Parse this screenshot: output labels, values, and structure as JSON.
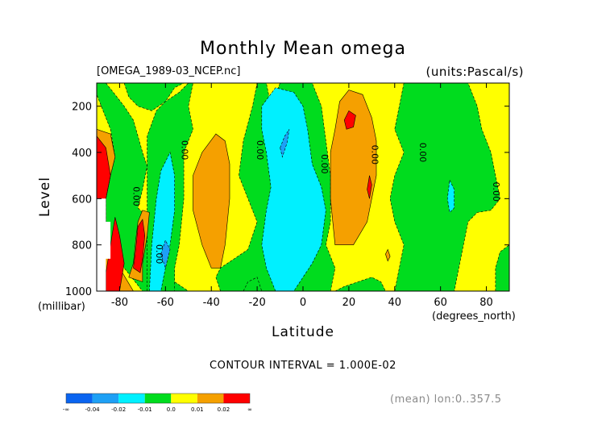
{
  "chart_data": {
    "type": "contour",
    "title": "Monthly Mean omega",
    "file_label": "[OMEGA_1989-03_NCEP.nc]",
    "units_label": "(units:Pascal/s)",
    "xlabel": "Latitude",
    "x_unit": "(degrees_north)",
    "ylabel": "Level",
    "y_unit": "(millibar)",
    "contour_note": "CONTOUR INTERVAL = 1.000E-02",
    "mean_note": "(mean) lon:0..357.5",
    "xlim": [
      -90,
      90
    ],
    "ylim": [
      1000,
      100
    ],
    "x_ticks": [
      -80,
      -60,
      -40,
      -20,
      0,
      20,
      40,
      60,
      80
    ],
    "y_ticks": [
      200,
      400,
      600,
      800,
      1000
    ],
    "x_tick_labels": [
      "-80",
      "-60",
      "-40",
      "-20",
      "0",
      "20",
      "40",
      "60",
      "80"
    ],
    "y_tick_labels": [
      "200",
      "400",
      "600",
      "800",
      "1000"
    ],
    "levels": [
      -0.04,
      -0.02,
      -0.01,
      0.0,
      0.01,
      0.02
    ],
    "colorbar": {
      "colors": [
        "#0a64f0",
        "#1ea0f5",
        "#00f0ff",
        "#00dc1e",
        "#ffff00",
        "#f5a000",
        "#ff0000"
      ],
      "labels": [
        "-∞",
        "-0.04",
        "-0.02",
        "-0.01",
        "0.0",
        "0.01",
        "0.02",
        "∞"
      ]
    },
    "zero_contour_labels": [
      {
        "x": -53,
        "y": 390,
        "text": "0.00"
      },
      {
        "x": -20,
        "y": 390,
        "text": "0.00"
      },
      {
        "x": 8,
        "y": 450,
        "text": "0.00"
      },
      {
        "x": 30,
        "y": 410,
        "text": "0.00"
      },
      {
        "x": 51,
        "y": 400,
        "text": "0.00"
      },
      {
        "x": 83,
        "y": 570,
        "text": "0.00"
      },
      {
        "x": -74,
        "y": 590,
        "text": "0.00"
      },
      {
        "x": -64,
        "y": 840,
        "text": "0.00"
      }
    ],
    "regions": [
      {
        "value": 0.005,
        "pts": [
          [
            -90,
            1000
          ],
          [
            -90,
            100
          ],
          [
            90,
            100
          ],
          [
            90,
            1000
          ]
        ]
      },
      {
        "value": -0.005,
        "pts": [
          [
            -86,
            100
          ],
          [
            -82,
            150
          ],
          [
            -78,
            200
          ],
          [
            -74,
            260
          ],
          [
            -72,
            330
          ],
          [
            -70,
            400
          ],
          [
            -68,
            460
          ],
          [
            -70,
            560
          ],
          [
            -72,
            640
          ],
          [
            -66,
            700
          ],
          [
            -63,
            800
          ],
          [
            -58,
            880
          ],
          [
            -56,
            960
          ],
          [
            -50,
            1000
          ],
          [
            -70,
            1000
          ],
          [
            -78,
            900
          ],
          [
            -84,
            800
          ],
          [
            -86,
            700
          ],
          [
            -86,
            600
          ],
          [
            -84,
            500
          ],
          [
            -82,
            420
          ],
          [
            -84,
            300
          ],
          [
            -88,
            200
          ],
          [
            -90,
            150
          ],
          [
            -90,
            100
          ]
        ]
      },
      {
        "value": -0.005,
        "pts": [
          [
            -78,
            100
          ],
          [
            -76,
            160
          ],
          [
            -72,
            200
          ],
          [
            -66,
            220
          ],
          [
            -60,
            180
          ],
          [
            -56,
            120
          ],
          [
            -52,
            100
          ]
        ]
      },
      {
        "value": -0.005,
        "pts": [
          [
            -68,
            1000
          ],
          [
            -68,
            330
          ],
          [
            -64,
            220
          ],
          [
            -60,
            180
          ],
          [
            -54,
            140
          ],
          [
            -50,
            100
          ],
          [
            -48,
            100
          ],
          [
            -50,
            200
          ],
          [
            -48,
            300
          ],
          [
            -52,
            400
          ],
          [
            -52,
            600
          ],
          [
            -54,
            800
          ],
          [
            -56,
            900
          ],
          [
            -56,
            1000
          ]
        ]
      },
      {
        "value": -0.005,
        "pts": [
          [
            -36,
            1000
          ],
          [
            -38,
            940
          ],
          [
            -36,
            900
          ],
          [
            -30,
            860
          ],
          [
            -24,
            820
          ],
          [
            -20,
            700
          ],
          [
            -24,
            600
          ],
          [
            -28,
            500
          ],
          [
            -26,
            350
          ],
          [
            -22,
            200
          ],
          [
            -20,
            100
          ],
          [
            -16,
            100
          ],
          [
            -14,
            200
          ],
          [
            -10,
            100
          ],
          [
            4,
            100
          ],
          [
            8,
            200
          ],
          [
            10,
            350
          ],
          [
            12,
            500
          ],
          [
            12,
            700
          ],
          [
            10,
            800
          ],
          [
            14,
            900
          ],
          [
            12,
            1000
          ]
        ]
      },
      {
        "value": -0.005,
        "pts": [
          [
            14,
            1000
          ],
          [
            18,
            980
          ],
          [
            24,
            960
          ],
          [
            30,
            940
          ],
          [
            34,
            960
          ],
          [
            36,
            1000
          ]
        ]
      },
      {
        "value": -0.005,
        "pts": [
          [
            -26,
            1000
          ],
          [
            -24,
            960
          ],
          [
            -20,
            940
          ],
          [
            -18,
            1000
          ]
        ]
      },
      {
        "value": -0.005,
        "pts": [
          [
            40,
            1000
          ],
          [
            42,
            900
          ],
          [
            44,
            800
          ],
          [
            40,
            700
          ],
          [
            38,
            600
          ],
          [
            40,
            500
          ],
          [
            44,
            400
          ],
          [
            40,
            300
          ],
          [
            42,
            200
          ],
          [
            44,
            100
          ],
          [
            72,
            100
          ],
          [
            76,
            200
          ],
          [
            78,
            300
          ],
          [
            82,
            400
          ],
          [
            84,
            500
          ],
          [
            86,
            600
          ],
          [
            82,
            650
          ],
          [
            76,
            660
          ],
          [
            72,
            700
          ],
          [
            70,
            800
          ],
          [
            68,
            900
          ],
          [
            66,
            1000
          ]
        ]
      },
      {
        "value": -0.005,
        "pts": [
          [
            84,
            1000
          ],
          [
            84,
            900
          ],
          [
            86,
            830
          ],
          [
            90,
            800
          ],
          [
            90,
            1000
          ]
        ]
      },
      {
        "value": -0.015,
        "pts": [
          [
            -67,
            1000
          ],
          [
            -66,
            800
          ],
          [
            -64,
            600
          ],
          [
            -62,
            480
          ],
          [
            -58,
            400
          ],
          [
            -56,
            500
          ],
          [
            -56,
            650
          ],
          [
            -58,
            800
          ],
          [
            -60,
            900
          ],
          [
            -62,
            1000
          ]
        ]
      },
      {
        "value": -0.015,
        "pts": [
          [
            -12,
            1000
          ],
          [
            -16,
            900
          ],
          [
            -18,
            800
          ],
          [
            -16,
            650
          ],
          [
            -14,
            550
          ],
          [
            -16,
            400
          ],
          [
            -18,
            300
          ],
          [
            -18,
            200
          ],
          [
            -12,
            120
          ],
          [
            -4,
            140
          ],
          [
            0,
            200
          ],
          [
            2,
            300
          ],
          [
            4,
            450
          ],
          [
            8,
            550
          ],
          [
            10,
            650
          ],
          [
            8,
            800
          ],
          [
            4,
            880
          ],
          [
            0,
            940
          ],
          [
            -4,
            1000
          ]
        ]
      },
      {
        "value": -0.015,
        "pts": [
          [
            64,
            520
          ],
          [
            66,
            560
          ],
          [
            66,
            640
          ],
          [
            64,
            660
          ],
          [
            63,
            600
          ]
        ]
      },
      {
        "value": -0.03,
        "pts": [
          [
            -62,
            840
          ],
          [
            -60,
            780
          ],
          [
            -58,
            820
          ],
          [
            -60,
            900
          ]
        ]
      },
      {
        "value": -0.03,
        "pts": [
          [
            -10,
            380
          ],
          [
            -8,
            330
          ],
          [
            -6,
            300
          ],
          [
            -7,
            360
          ],
          [
            -9,
            420
          ]
        ]
      },
      {
        "value": 0.015,
        "pts": [
          [
            -88,
            1000
          ],
          [
            -90,
            300
          ],
          [
            -84,
            320
          ],
          [
            -82,
            420
          ],
          [
            -84,
            500
          ],
          [
            -86,
            600
          ],
          [
            -86,
            700
          ],
          [
            -84,
            800
          ],
          [
            -80,
            900
          ],
          [
            -74,
            1000
          ]
        ]
      },
      {
        "value": 0.015,
        "pts": [
          [
            -76,
            940
          ],
          [
            -74,
            880
          ],
          [
            -73,
            780
          ],
          [
            -72,
            700
          ],
          [
            -70,
            650
          ],
          [
            -67,
            660
          ],
          [
            -68,
            760
          ],
          [
            -70,
            880
          ],
          [
            -70,
            960
          ]
        ]
      },
      {
        "value": 0.015,
        "pts": [
          [
            -40,
            900
          ],
          [
            -44,
            800
          ],
          [
            -48,
            650
          ],
          [
            -48,
            500
          ],
          [
            -44,
            400
          ],
          [
            -38,
            320
          ],
          [
            -34,
            350
          ],
          [
            -32,
            450
          ],
          [
            -32,
            600
          ],
          [
            -34,
            800
          ],
          [
            -36,
            900
          ]
        ]
      },
      {
        "value": 0.015,
        "pts": [
          [
            14,
            800
          ],
          [
            12,
            600
          ],
          [
            12,
            400
          ],
          [
            14,
            300
          ],
          [
            16,
            180
          ],
          [
            20,
            130
          ],
          [
            26,
            150
          ],
          [
            30,
            250
          ],
          [
            32,
            350
          ],
          [
            32,
            500
          ],
          [
            30,
            600
          ],
          [
            28,
            700
          ],
          [
            22,
            800
          ]
        ]
      },
      {
        "value": 0.015,
        "pts": [
          [
            36,
            840
          ],
          [
            37,
            820
          ],
          [
            38,
            850
          ],
          [
            37,
            870
          ]
        ]
      },
      {
        "value": 0.025,
        "pts": [
          [
            -90,
            700
          ],
          [
            -90,
            330
          ],
          [
            -86,
            380
          ],
          [
            -84,
            500
          ],
          [
            -86,
            600
          ],
          [
            -88,
            700
          ]
        ]
      },
      {
        "value": 0.025,
        "pts": [
          [
            -86,
            1000
          ],
          [
            -86,
            920
          ],
          [
            -84,
            800
          ],
          [
            -82,
            680
          ],
          [
            -80,
            760
          ],
          [
            -78,
            880
          ],
          [
            -80,
            1000
          ]
        ]
      },
      {
        "value": 0.025,
        "pts": [
          [
            -74,
            900
          ],
          [
            -73,
            820
          ],
          [
            -72,
            720
          ],
          [
            -70,
            690
          ],
          [
            -69,
            760
          ],
          [
            -70,
            860
          ],
          [
            -71,
            920
          ]
        ]
      },
      {
        "value": 0.025,
        "pts": [
          [
            19,
            300
          ],
          [
            18,
            260
          ],
          [
            20,
            220
          ],
          [
            23,
            240
          ],
          [
            22,
            290
          ]
        ]
      },
      {
        "value": 0.025,
        "pts": [
          [
            28,
            560
          ],
          [
            29,
            500
          ],
          [
            30,
            540
          ],
          [
            29,
            600
          ]
        ]
      }
    ],
    "masked": [
      {
        "pts": [
          [
            -90,
            600
          ],
          [
            -90,
            1000
          ],
          [
            -86,
            1000
          ],
          [
            -86,
            860
          ],
          [
            -84,
            860
          ],
          [
            -84,
            700
          ],
          [
            -86,
            700
          ],
          [
            -86,
            600
          ]
        ]
      }
    ]
  }
}
